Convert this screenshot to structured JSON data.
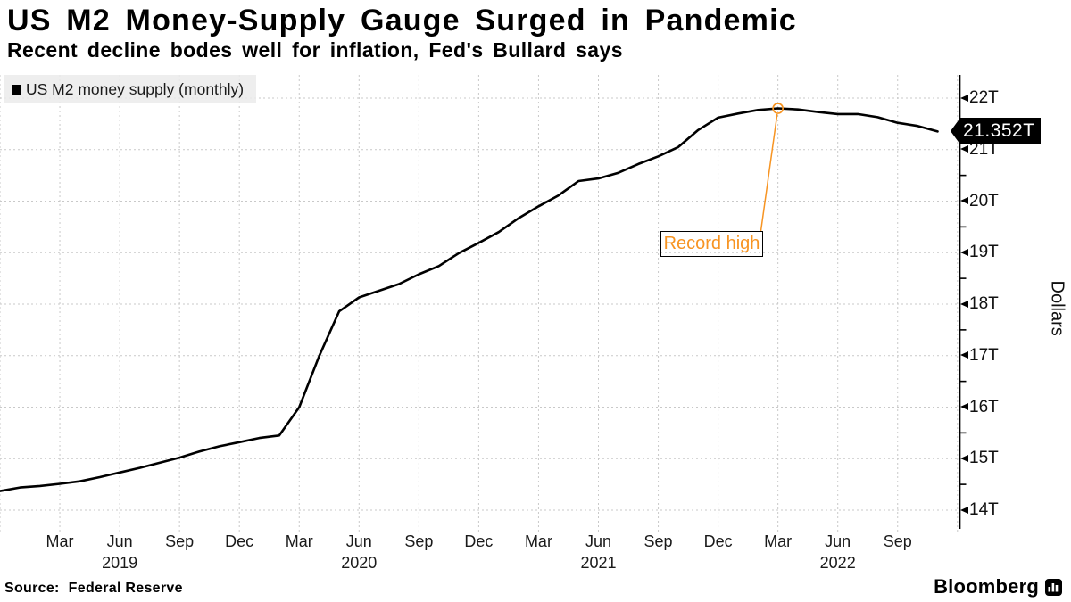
{
  "header": {
    "title": "US M2 Money-Supply Gauge Surged in Pandemic",
    "subtitle": "Recent decline bodes well for inflation, Fed's Bullard says"
  },
  "legend": {
    "label": "US M2 money supply (monthly)",
    "swatch_color": "#000000"
  },
  "footer": {
    "source_label": "Source:",
    "source_value": "Federal Reserve",
    "brand": "Bloomberg"
  },
  "colors": {
    "line": "#000000",
    "accent_orange": "#f79422",
    "grid": "#c9c9c9",
    "legend_bg": "#ebebeb",
    "badge_bg": "#000000",
    "badge_text": "#ffffff",
    "axis": "#000000"
  },
  "chart_data": {
    "type": "line",
    "title": "US M2 Money-Supply Gauge Surged in Pandemic",
    "subtitle": "Recent decline bodes well for inflation, Fed's Bullard says",
    "series_name": "US M2 money supply (monthly)",
    "ylabel": "Dollars",
    "unit": "T = trillions of dollars",
    "ylim": [
      13.65,
      22.45
    ],
    "grid": true,
    "legend_position": "top-left",
    "x": [
      "Dec 2018",
      "Jan 2019",
      "Feb 2019",
      "Mar 2019",
      "Apr 2019",
      "May 2019",
      "Jun 2019",
      "Jul 2019",
      "Aug 2019",
      "Sep 2019",
      "Oct 2019",
      "Nov 2019",
      "Dec 2019",
      "Jan 2020",
      "Feb 2020",
      "Mar 2020",
      "Apr 2020",
      "May 2020",
      "Jun 2020",
      "Jul 2020",
      "Aug 2020",
      "Sep 2020",
      "Oct 2020",
      "Nov 2020",
      "Dec 2020",
      "Jan 2021",
      "Feb 2021",
      "Mar 2021",
      "Apr 2021",
      "May 2021",
      "Jun 2021",
      "Jul 2021",
      "Aug 2021",
      "Sep 2021",
      "Oct 2021",
      "Nov 2021",
      "Dec 2021",
      "Jan 2022",
      "Feb 2022",
      "Mar 2022",
      "Apr 2022",
      "May 2022",
      "Jun 2022",
      "Jul 2022",
      "Aug 2022",
      "Sep 2022",
      "Oct 2022",
      "Nov 2022"
    ],
    "values": [
      14.37,
      14.44,
      14.47,
      14.51,
      14.56,
      14.64,
      14.73,
      14.82,
      14.92,
      15.02,
      15.14,
      15.24,
      15.32,
      15.4,
      15.45,
      16.0,
      16.99,
      17.86,
      18.13,
      18.26,
      18.39,
      18.58,
      18.74,
      18.99,
      19.19,
      19.4,
      19.67,
      19.9,
      20.11,
      20.39,
      20.44,
      20.55,
      20.72,
      20.87,
      21.05,
      21.38,
      21.62,
      21.7,
      21.77,
      21.8,
      21.78,
      21.73,
      21.69,
      21.69,
      21.63,
      21.52,
      21.46,
      21.352
    ],
    "y_ticks": [
      {
        "label": "14T",
        "value": 14
      },
      {
        "label": "15T",
        "value": 15
      },
      {
        "label": "16T",
        "value": 16
      },
      {
        "label": "17T",
        "value": 17
      },
      {
        "label": "18T",
        "value": 18
      },
      {
        "label": "19T",
        "value": 19
      },
      {
        "label": "20T",
        "value": 20
      },
      {
        "label": "21T",
        "value": 21
      },
      {
        "label": "22T",
        "value": 22
      }
    ],
    "y_minor_ticks": [
      14.5,
      15.5,
      16.5,
      17.5,
      18.5,
      19.5,
      20.5,
      21.5
    ],
    "x_ticks": [
      {
        "label": "Mar",
        "month_index": 3
      },
      {
        "label": "Jun",
        "month_index": 6
      },
      {
        "label": "Sep",
        "month_index": 9
      },
      {
        "label": "Dec",
        "month_index": 12
      },
      {
        "label": "Mar",
        "month_index": 15
      },
      {
        "label": "Jun",
        "month_index": 18
      },
      {
        "label": "Sep",
        "month_index": 21
      },
      {
        "label": "Dec",
        "month_index": 24
      },
      {
        "label": "Mar",
        "month_index": 27
      },
      {
        "label": "Jun",
        "month_index": 30
      },
      {
        "label": "Sep",
        "month_index": 33
      },
      {
        "label": "Dec",
        "month_index": 36
      },
      {
        "label": "Mar",
        "month_index": 39
      },
      {
        "label": "Jun",
        "month_index": 42
      },
      {
        "label": "Sep",
        "month_index": 45
      }
    ],
    "year_labels": [
      {
        "label": "2019",
        "month_index": 6
      },
      {
        "label": "2020",
        "month_index": 18
      },
      {
        "label": "2021",
        "month_index": 30
      },
      {
        "label": "2022",
        "month_index": 42
      }
    ],
    "last_point_label": "21.352T",
    "annotation": {
      "text": "Record high",
      "month": "Mar 2022",
      "month_index": 39,
      "value": 21.8
    }
  }
}
